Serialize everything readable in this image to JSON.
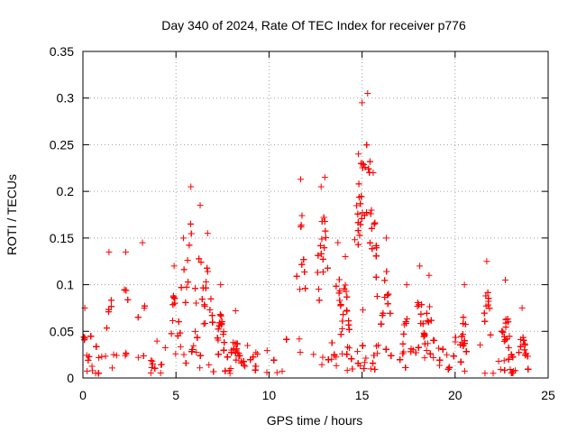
{
  "chart_data": {
    "type": "scatter",
    "title": "Day 340 of 2024, Rate Of TEC Index for receiver p776",
    "xlabel": "GPS time / hours",
    "ylabel": "ROTI / TECUs",
    "xlim": [
      0,
      25
    ],
    "ylim": [
      0,
      0.35
    ],
    "x_ticks": [
      0,
      5,
      10,
      15,
      20,
      25
    ],
    "x_tick_labels": [
      "0",
      "5",
      "10",
      "15",
      "20",
      "25"
    ],
    "y_ticks": [
      0,
      0.05,
      0.1,
      0.15,
      0.2,
      0.25,
      0.3,
      0.35
    ],
    "y_tick_labels": [
      "0",
      "0.05",
      "0.1",
      "0.15",
      "0.2",
      "0.25",
      "0.3",
      "0.35"
    ],
    "grid": true,
    "marker": "+",
    "color": "#ff0000",
    "data_x_range": [
      0,
      24
    ],
    "data_gap": [
      16.6,
      16.8
    ],
    "baseline_band": [
      0.005,
      0.045
    ],
    "peaks": [
      {
        "x": 0.1,
        "y": 0.075
      },
      {
        "x": 1.4,
        "y": 0.135
      },
      {
        "x": 2.3,
        "y": 0.135
      },
      {
        "x": 3.2,
        "y": 0.145
      },
      {
        "x": 4.9,
        "y": 0.12
      },
      {
        "x": 5.4,
        "y": 0.15
      },
      {
        "x": 5.8,
        "y": 0.205
      },
      {
        "x": 6.3,
        "y": 0.185
      },
      {
        "x": 6.7,
        "y": 0.155
      },
      {
        "x": 7.4,
        "y": 0.1
      },
      {
        "x": 8.2,
        "y": 0.072
      },
      {
        "x": 11.7,
        "y": 0.213
      },
      {
        "x": 12.8,
        "y": 0.205
      },
      {
        "x": 13.0,
        "y": 0.215
      },
      {
        "x": 13.7,
        "y": 0.145
      },
      {
        "x": 14.1,
        "y": 0.13
      },
      {
        "x": 14.8,
        "y": 0.24
      },
      {
        "x": 15.0,
        "y": 0.295
      },
      {
        "x": 15.3,
        "y": 0.305
      },
      {
        "x": 15.6,
        "y": 0.22
      },
      {
        "x": 16.3,
        "y": 0.15
      },
      {
        "x": 17.4,
        "y": 0.1
      },
      {
        "x": 18.1,
        "y": 0.12
      },
      {
        "x": 18.6,
        "y": 0.11
      },
      {
        "x": 20.5,
        "y": 0.1
      },
      {
        "x": 21.7,
        "y": 0.125
      },
      {
        "x": 22.7,
        "y": 0.105
      },
      {
        "x": 23.6,
        "y": 0.075
      }
    ]
  }
}
